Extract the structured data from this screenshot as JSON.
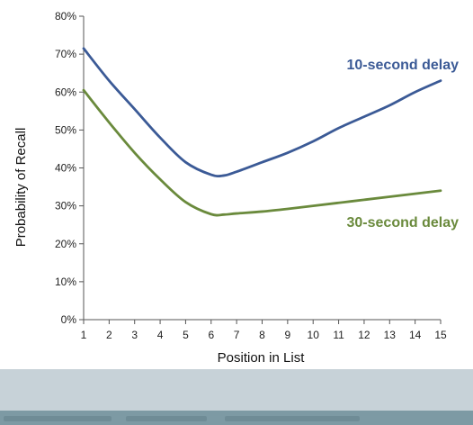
{
  "chart_data": {
    "type": "line",
    "title": "",
    "xlabel": "Position in List",
    "ylabel": "Probability of Recall",
    "x": [
      1,
      2,
      3,
      4,
      5,
      6,
      6.5,
      7,
      8,
      9,
      10,
      11,
      12,
      13,
      14,
      15
    ],
    "xticks": [
      "1",
      "2",
      "3",
      "4",
      "5",
      "6",
      "7",
      "8",
      "9",
      "10",
      "11",
      "12",
      "13",
      "14",
      "15"
    ],
    "xlim": [
      1,
      15
    ],
    "yticks": [
      "0%",
      "10%",
      "20%",
      "30%",
      "40%",
      "50%",
      "60%",
      "70%",
      "80%"
    ],
    "ylim": [
      0,
      80
    ],
    "grid": false,
    "series": [
      {
        "name": "10-second delay",
        "color": "#3b5a96",
        "values": [
          71.5,
          63,
          55.5,
          48,
          41.5,
          38.2,
          38,
          39,
          41.5,
          44,
          47,
          50.5,
          53.5,
          56.5,
          60,
          63
        ]
      },
      {
        "name": "30-second delay",
        "color": "#6a8a3c",
        "values": [
          60.5,
          52,
          44,
          37,
          31,
          27.8,
          27.7,
          28,
          28.5,
          29.2,
          30,
          30.8,
          31.6,
          32.4,
          33.2,
          34
        ]
      }
    ]
  }
}
